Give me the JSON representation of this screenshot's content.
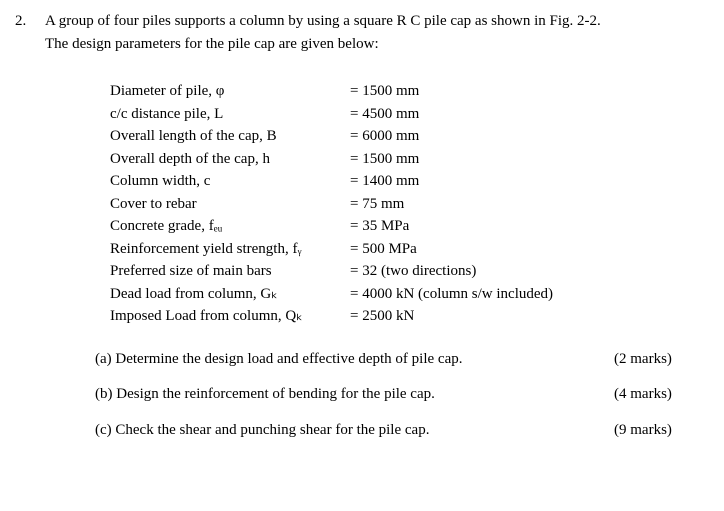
{
  "question": {
    "number": "2.",
    "text_line1": "A group of four piles supports a column by using a square R C pile cap as shown in Fig. 2-2.",
    "text_line2": "The design parameters for the pile cap are given below:"
  },
  "params": [
    {
      "label": "Diameter of pile, φ",
      "value": "= 1500 mm"
    },
    {
      "label": "c/c distance pile, L",
      "value": "= 4500 mm"
    },
    {
      "label": "Overall length of the cap, B",
      "value": "= 6000 mm"
    },
    {
      "label": "Overall depth of the cap, h",
      "value": "= 1500 mm"
    },
    {
      "label": "Column width, c",
      "value": "= 1400 mm"
    },
    {
      "label": "Cover to rebar",
      "value": "= 75 mm"
    },
    {
      "label": "Concrete grade, fₑᵤ",
      "value": "= 35 MPa"
    },
    {
      "label": "Reinforcement yield strength, fᵧ",
      "value": "= 500 MPa"
    },
    {
      "label": "Preferred size of main bars",
      "value": "= 32 (two directions)"
    },
    {
      "label": "Dead load from column, Gₖ",
      "value": "= 4000 kN   (column s/w included)"
    },
    {
      "label": "Imposed Load from column, Qₖ",
      "value": "= 2500 kN"
    }
  ],
  "sub_questions": [
    {
      "text": "(a) Determine the design load and effective depth of pile cap.",
      "marks": "(2 marks)"
    },
    {
      "text": "(b) Design the reinforcement of bending for the pile cap.",
      "marks": "(4 marks)"
    },
    {
      "text": "(c) Check the shear and punching shear for the pile cap.",
      "marks": "(9 marks)"
    }
  ]
}
